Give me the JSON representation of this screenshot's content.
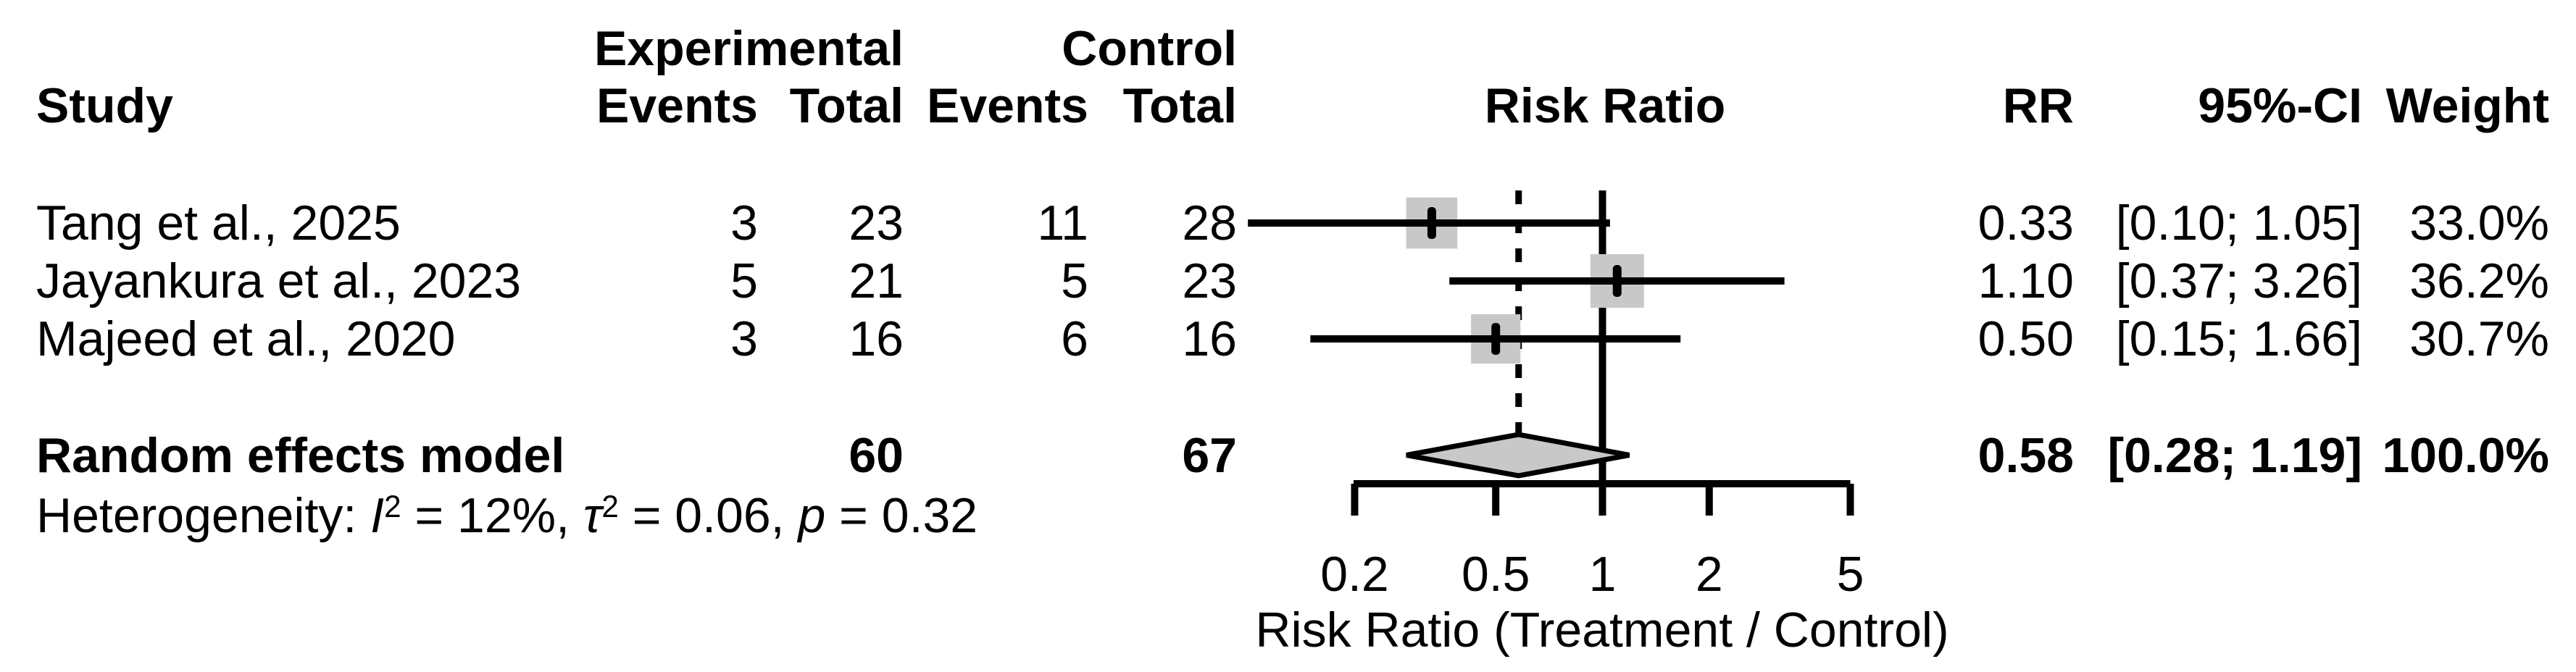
{
  "colors": {
    "text": "#000000",
    "line": "#000000",
    "square_fill": "#c8c8c8",
    "diamond_fill": "#c8c8c8"
  },
  "table": {
    "headers": {
      "group_experimental": "Experimental",
      "group_control": "Control",
      "study": "Study",
      "exp_events": "Events",
      "exp_total": "Total",
      "ctrl_events": "Events",
      "ctrl_total": "Total",
      "risk_ratio": "Risk Ratio",
      "rr": "RR",
      "ci": "95%-CI",
      "weight": "Weight"
    },
    "studies": [
      {
        "name": "Tang et al., 2025",
        "exp_events": "3",
        "exp_total": "23",
        "ctrl_events": "11",
        "ctrl_total": "28",
        "rr": "0.33",
        "ci": "[0.10; 1.05]",
        "weight": "33.0%"
      },
      {
        "name": "Jayankura et al., 2023",
        "exp_events": "5",
        "exp_total": "21",
        "ctrl_events": "5",
        "ctrl_total": "23",
        "rr": "1.10",
        "ci": "[0.37; 3.26]",
        "weight": "36.2%"
      },
      {
        "name": "Majeed et al., 2020",
        "exp_events": "3",
        "exp_total": "16",
        "ctrl_events": "6",
        "ctrl_total": "16",
        "rr": "0.50",
        "ci": "[0.15; 1.66]",
        "weight": "30.7%"
      }
    ],
    "total_row": {
      "name": "Random effects model",
      "exp_total": "60",
      "ctrl_total": "67",
      "rr": "0.58",
      "ci": "[0.28; 1.19]",
      "weight": "100.0%"
    },
    "heterogeneity": {
      "prefix": "Heterogeneity: ",
      "i_sym": "I",
      "i_sup": "2",
      "seg1": " = 12%, ",
      "tau_sym": "τ",
      "tau_sup": "2",
      "seg2": " = 0.06, ",
      "p_sym": "p",
      "seg3": " = 0.32"
    }
  },
  "axis": {
    "tick_labels": [
      "0.2",
      "0.5",
      "1",
      "2",
      "5"
    ],
    "title": "Risk Ratio (Treatment / Control)"
  },
  "chart_data": {
    "type": "forest",
    "x_scale": "log",
    "x_ticks": [
      0.2,
      0.5,
      1,
      2,
      5
    ],
    "x_range": [
      0.2,
      5
    ],
    "xlabel": "Risk Ratio (Treatment / Control)",
    "effect_label": "Risk Ratio",
    "null_line": 1.0,
    "pooled_line": 0.58,
    "studies": [
      {
        "name": "Tang et al., 2025",
        "exp_events": 3,
        "exp_total": 23,
        "ctrl_events": 11,
        "ctrl_total": 28,
        "rr": 0.33,
        "ci_low": 0.1,
        "ci_high": 1.05,
        "weight_pct": 33.0
      },
      {
        "name": "Jayankura et al., 2023",
        "exp_events": 5,
        "exp_total": 21,
        "ctrl_events": 5,
        "ctrl_total": 23,
        "rr": 1.1,
        "ci_low": 0.37,
        "ci_high": 3.26,
        "weight_pct": 36.2
      },
      {
        "name": "Majeed et al., 2020",
        "exp_events": 3,
        "exp_total": 16,
        "ctrl_events": 6,
        "ctrl_total": 16,
        "rr": 0.5,
        "ci_low": 0.15,
        "ci_high": 1.66,
        "weight_pct": 30.7
      }
    ],
    "pooled": {
      "model": "Random effects model",
      "exp_total": 60,
      "ctrl_total": 67,
      "rr": 0.58,
      "ci_low": 0.28,
      "ci_high": 1.19,
      "weight_pct": 100.0
    },
    "heterogeneity": {
      "I2": "12%",
      "tau2": 0.06,
      "p": 0.32
    }
  }
}
